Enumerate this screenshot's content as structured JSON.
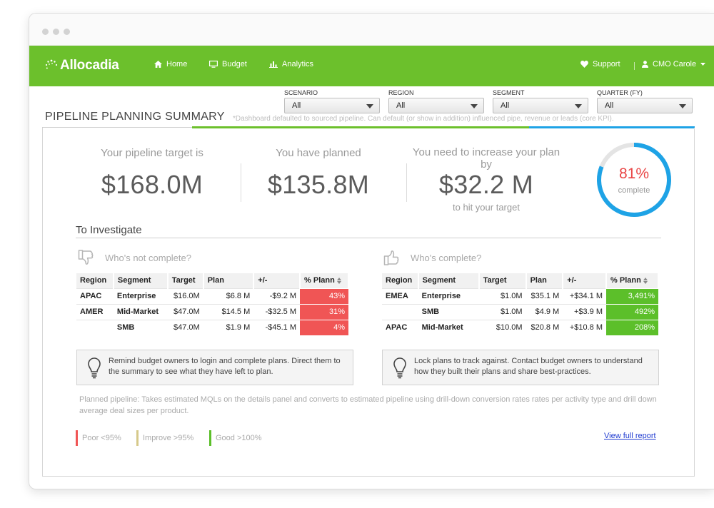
{
  "colors": {
    "brand_green": "#6cc02c",
    "dark_green": "#2f8b13",
    "accent_blue": "#1ea3e6",
    "poor_red": "#f05555",
    "good_green": "#5cbf2a",
    "improve_tan": "#d6c98a"
  },
  "nav": {
    "logo": "Allocadia",
    "items": [
      {
        "label": "Home",
        "icon": "home-icon"
      },
      {
        "label": "Budget",
        "icon": "monitor-icon"
      },
      {
        "label": "Analytics",
        "icon": "bar-chart-icon"
      }
    ],
    "support": "Support",
    "user": "CMO Carole"
  },
  "filters": [
    {
      "label": "SCENARIO",
      "value": "All"
    },
    {
      "label": "REGION",
      "value": "All"
    },
    {
      "label": "SEGMENT",
      "value": "All"
    },
    {
      "label": "QUARTER (FY)",
      "value": "All"
    }
  ],
  "summary": {
    "title": "PIPELINE PLANNING SUMMARY",
    "note": "*Dashboard defaulted to sourced pipeline. Can default (or show in addition) influenced pipe, revenue or leads (core KPI).",
    "target_label": "Your pipeline target is",
    "target_value": "$168.0M",
    "planned_label": "You have planned",
    "planned_value": "$135.8M",
    "increase_label": "You need to increase your plan by",
    "increase_value": "$32.2 M",
    "increase_sub": "to hit your target",
    "complete_pct": "81%",
    "complete_fraction": 0.81,
    "complete_label": "complete"
  },
  "investigate": {
    "title": "To Investigate",
    "not_complete": {
      "heading": "Who's not complete?",
      "columns": [
        "Region",
        "Segment",
        "Target",
        "Plan",
        "+/-",
        "% Plann"
      ],
      "rows": [
        {
          "region": "APAC",
          "segment": "Enterprise",
          "target": "$16.0M",
          "plan": "$6.8 M",
          "diff": "-$9.2 M",
          "pct": "43%"
        },
        {
          "region": "AMER",
          "segment": "Mid-Market",
          "target": "$47.0M",
          "plan": "$14.5 M",
          "diff": "-$32.5 M",
          "pct": "31%"
        },
        {
          "region": "",
          "segment": "SMB",
          "target": "$47.0M",
          "plan": "$1.9 M",
          "diff": "-$45.1 M",
          "pct": "4%"
        }
      ],
      "tip": "Remind budget owners to login and complete plans. Direct them to the summary to see what they have left to plan."
    },
    "complete": {
      "heading": "Who's complete?",
      "columns": [
        "Region",
        "Segment",
        "Target",
        "Plan",
        "+/-",
        "% Plann"
      ],
      "rows": [
        {
          "region": "EMEA",
          "segment": "Enterprise",
          "target": "$1.0M",
          "plan": "$35.1 M",
          "diff": "+$34.1 M",
          "pct": "3,491%"
        },
        {
          "region": "",
          "segment": "SMB",
          "target": "$1.0M",
          "plan": "$4.9 M",
          "diff": "+$3.9 M",
          "pct": "492%"
        },
        {
          "region": "APAC",
          "segment": "Mid-Market",
          "target": "$10.0M",
          "plan": "$20.8 M",
          "diff": "+$10.8 M",
          "pct": "208%"
        }
      ],
      "tip": "Lock plans to track against. Contact budget owners to understand how they built their plans and share best-practices."
    }
  },
  "footnote": "Planned pipeline: Takes estimated MQLs on the details panel and converts to estimated pipeline using drill-down conversion rates rates per activity type and drill down average deal sizes per product.",
  "legend": [
    {
      "label": "Poor <95%",
      "color": "#f05555"
    },
    {
      "label": "Improve >95%",
      "color": "#d6c98a"
    },
    {
      "label": "Good >100%",
      "color": "#5cbf2a"
    }
  ],
  "report_link": "View full report"
}
